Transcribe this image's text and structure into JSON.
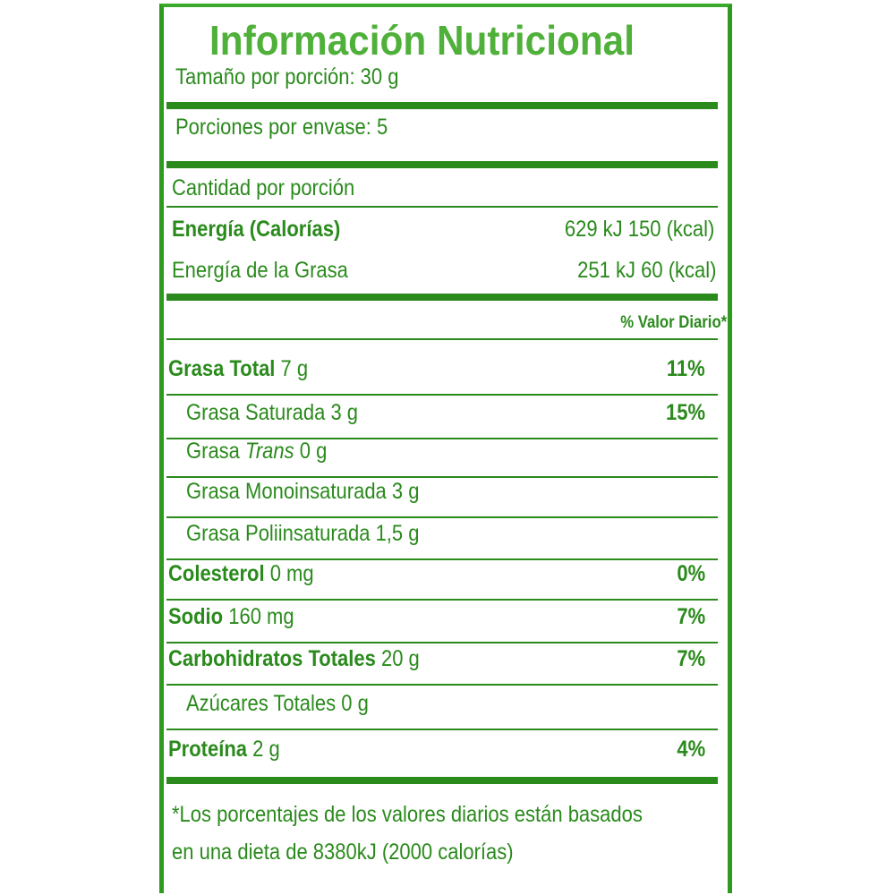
{
  "title": "Información Nutricional",
  "serving_size": "Tamaño por porción: 30 g",
  "servings_per_container": "Porciones por envase: 5",
  "amount_per_serving": "Cantidad por porción",
  "energy": {
    "label": "Energía (Calorías)",
    "value": "629 kJ 150 (kcal)"
  },
  "energy_fat": {
    "label": "Energía de la Grasa",
    "value": "251 kJ 60 (kcal)"
  },
  "dv_header": "% Valor Diario*",
  "nutrients": [
    {
      "name": "Grasa Total",
      "amount": "7 g",
      "dv": "11%"
    },
    {
      "name": "Grasa Saturada",
      "amount": "3 g",
      "dv": "15%"
    },
    {
      "name": "Grasa",
      "name_italic": "Trans",
      "amount": "0 g",
      "dv": ""
    },
    {
      "name": "Grasa Monoinsaturada",
      "amount": "3 g",
      "dv": ""
    },
    {
      "name": "Grasa Poliinsaturada",
      "amount": "1,5 g",
      "dv": ""
    },
    {
      "name": "Colesterol",
      "amount": "0 mg",
      "dv": "0%"
    },
    {
      "name": "Sodio",
      "amount": "160 mg",
      "dv": "7%"
    },
    {
      "name": "Carbohidratos Totales",
      "amount": "20 g",
      "dv": "7%"
    },
    {
      "name": "Azúcares Totales",
      "amount": "0 g",
      "dv": ""
    },
    {
      "name": "Proteína",
      "amount": "2 g",
      "dv": "4%"
    }
  ],
  "footnote": [
    "*Los porcentajes de los valores diarios están basados",
    "en una dieta de 8380kJ (2000 calorías)"
  ],
  "colors": {
    "green": "#2a8a1c",
    "title_green": "#4fb03a"
  }
}
